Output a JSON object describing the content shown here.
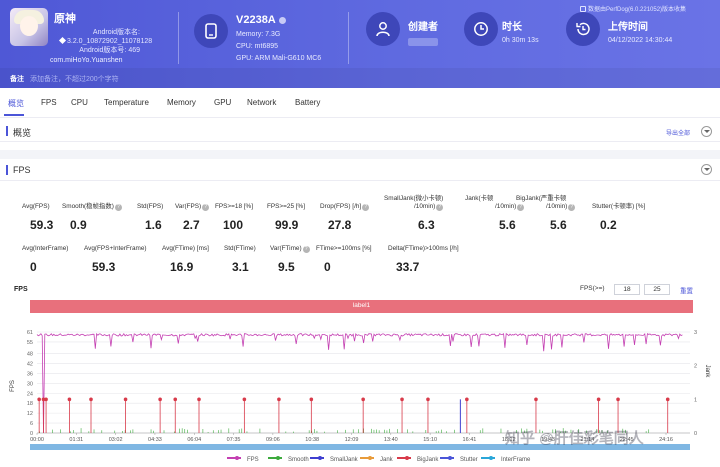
{
  "header": {
    "app_name": "原神",
    "app_lines": [
      "Android版本名:",
      "3.2.0_10872902_11078128",
      "Android版本号: 469"
    ],
    "package": "com.miHoYo.Yuanshen",
    "device": {
      "name": "V2238A",
      "memory": "Memory: 7.3G",
      "cpu": "CPU: mt6895",
      "gpu": "GPU: ARM Mali-G610 MC6"
    },
    "creator_title": "创建者",
    "duration_title": "时长",
    "duration_value": "0h 30m 13s",
    "upload_title": "上传时间",
    "upload_value": "04/12/2022 14:30:44",
    "version_note": "数据由PerfDog(6.0.221052)版本收集",
    "note_label": "备注",
    "note_placeholder": "添加备注，不超过200个字符"
  },
  "tabs": [
    "概览",
    "FPS",
    "CPU",
    "Temperature",
    "Memory",
    "GPU",
    "Network",
    "Battery"
  ],
  "overview": {
    "title": "概览",
    "export": "导出全部"
  },
  "fps_section": {
    "title": "FPS"
  },
  "stats_row1": [
    {
      "label": "Avg(FPS)",
      "value": "59.3",
      "q": false
    },
    {
      "label": "Smooth(稳帧指数)",
      "value": "0.9",
      "q": true
    },
    {
      "label": "Std(FPS)",
      "value": "1.6",
      "q": false
    },
    {
      "label": "Var(FPS)",
      "value": "2.7",
      "q": true
    },
    {
      "label": "FPS>=18 [%]",
      "value": "100",
      "q": false
    },
    {
      "label": "FPS>=25 [%]",
      "value": "99.9",
      "q": false
    },
    {
      "label": "Drop(FPS) [/h]",
      "value": "27.8",
      "q": true
    },
    {
      "label": "SmallJank(微小卡顿)",
      "label2": "/10min)",
      "value": "6.3",
      "q": true
    },
    {
      "label": "Jank(卡顿",
      "label2": "/10min)",
      "value": "5.6",
      "q": true
    },
    {
      "label": "BigJank(严重卡顿",
      "label2": "/10min)",
      "value": "5.6",
      "q": true
    },
    {
      "label": "Stutter(卡顿率) [%]",
      "value": "0.2",
      "q": false
    }
  ],
  "stats_row2": [
    {
      "label": "Avg(InterFrame)",
      "value": "0",
      "q": false
    },
    {
      "label": "Avg(FPS+InterFrame)",
      "value": "59.3",
      "q": false
    },
    {
      "label": "Avg(FTime) [ms]",
      "value": "16.9",
      "q": false
    },
    {
      "label": "Std(FTime)",
      "value": "3.1",
      "q": false
    },
    {
      "label": "Var(FTime)",
      "value": "9.5",
      "q": true
    },
    {
      "label": "FTime>=100ms [%]",
      "value": "0",
      "q": false
    },
    {
      "label": "Delta(FTime)>100ms [/h]",
      "value": "33.7",
      "q": false
    }
  ],
  "chart": {
    "title": "FPS",
    "fps_ge_label": "FPS(>=)",
    "fps_ge_values": [
      "18",
      "25"
    ],
    "reset": "重置",
    "label_bar": "label1",
    "watermark": "知乎 @肝佳彩笔同人"
  },
  "chart_data": {
    "type": "line",
    "ylabel": "FPS",
    "y2label": "Jank",
    "ylim": [
      0,
      61
    ],
    "y_ticks": [
      0,
      6,
      12,
      18,
      24,
      30,
      36,
      42,
      48,
      55,
      61
    ],
    "y2lim": [
      0,
      3
    ],
    "y2_ticks": [
      0,
      1,
      2,
      3
    ],
    "x_ticks": [
      "00:00",
      "01:31",
      "03:02",
      "04:33",
      "06:04",
      "07:35",
      "09:06",
      "10:38",
      "12:09",
      "13:40",
      "15:10",
      "16:41",
      "18:12",
      "19:43",
      "21:14",
      "22:45",
      "24:16"
    ],
    "legend": [
      {
        "name": "FPS",
        "color": "#c43fb2"
      },
      {
        "name": "Smooth",
        "color": "#3daa3d"
      },
      {
        "name": "SmallJank",
        "color": "#3f3fd0"
      },
      {
        "name": "Jank",
        "color": "#e89b3a"
      },
      {
        "name": "BigJank",
        "color": "#d83a4a"
      },
      {
        "name": "Stutter",
        "color": "#4b55d8"
      },
      {
        "name": "InterFrame",
        "color": "#2aa6d8"
      }
    ],
    "fps_series_summary": {
      "baseline": 59.3,
      "early_dip_time": "00:14",
      "early_dip_value": 0,
      "late_dip_time": "25:30",
      "late_dip_value": 0
    },
    "bigjank_events": [
      "00:05",
      "00:15",
      "00:21",
      "01:15",
      "02:05",
      "03:25",
      "04:45",
      "05:20",
      "06:15",
      "08:00",
      "09:20",
      "10:35",
      "12:35",
      "14:05",
      "15:05",
      "16:35",
      "19:15",
      "21:40",
      "22:25",
      "24:20"
    ],
    "colors": {
      "fps": "#c43fb2",
      "bigjank": "#d83a4a",
      "smooth": "#3daa3d",
      "smalljank": "#3f3fd0"
    }
  }
}
